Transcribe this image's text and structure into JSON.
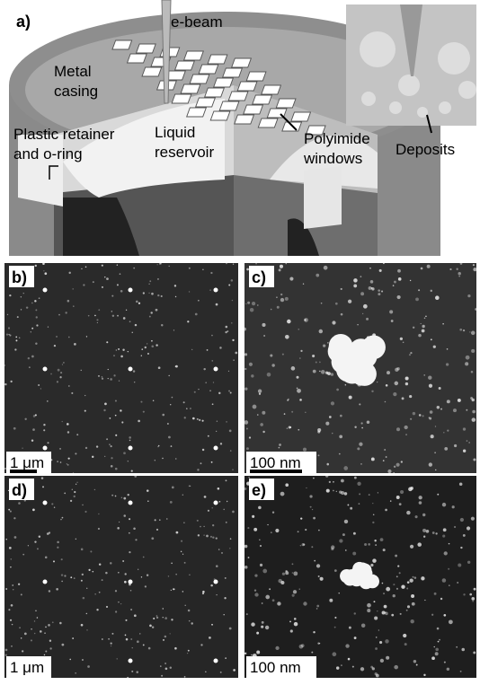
{
  "panels": {
    "a": {
      "label": "a)",
      "ebeam": "e-beam",
      "casing": [
        "Metal",
        "casing"
      ],
      "retainer": [
        "Plastic retainer",
        "and o-ring"
      ],
      "reservoir": [
        "Liquid",
        "reservoir"
      ],
      "windows": [
        "Polyimide",
        "windows"
      ],
      "deposits": "Deposits"
    },
    "b": {
      "label": "b)",
      "scale": "1 μm"
    },
    "c": {
      "label": "c)",
      "scale": "100 nm"
    },
    "d": {
      "label": "d)",
      "scale": "1 μm"
    },
    "e": {
      "label": "e)",
      "scale": "100 nm"
    }
  }
}
